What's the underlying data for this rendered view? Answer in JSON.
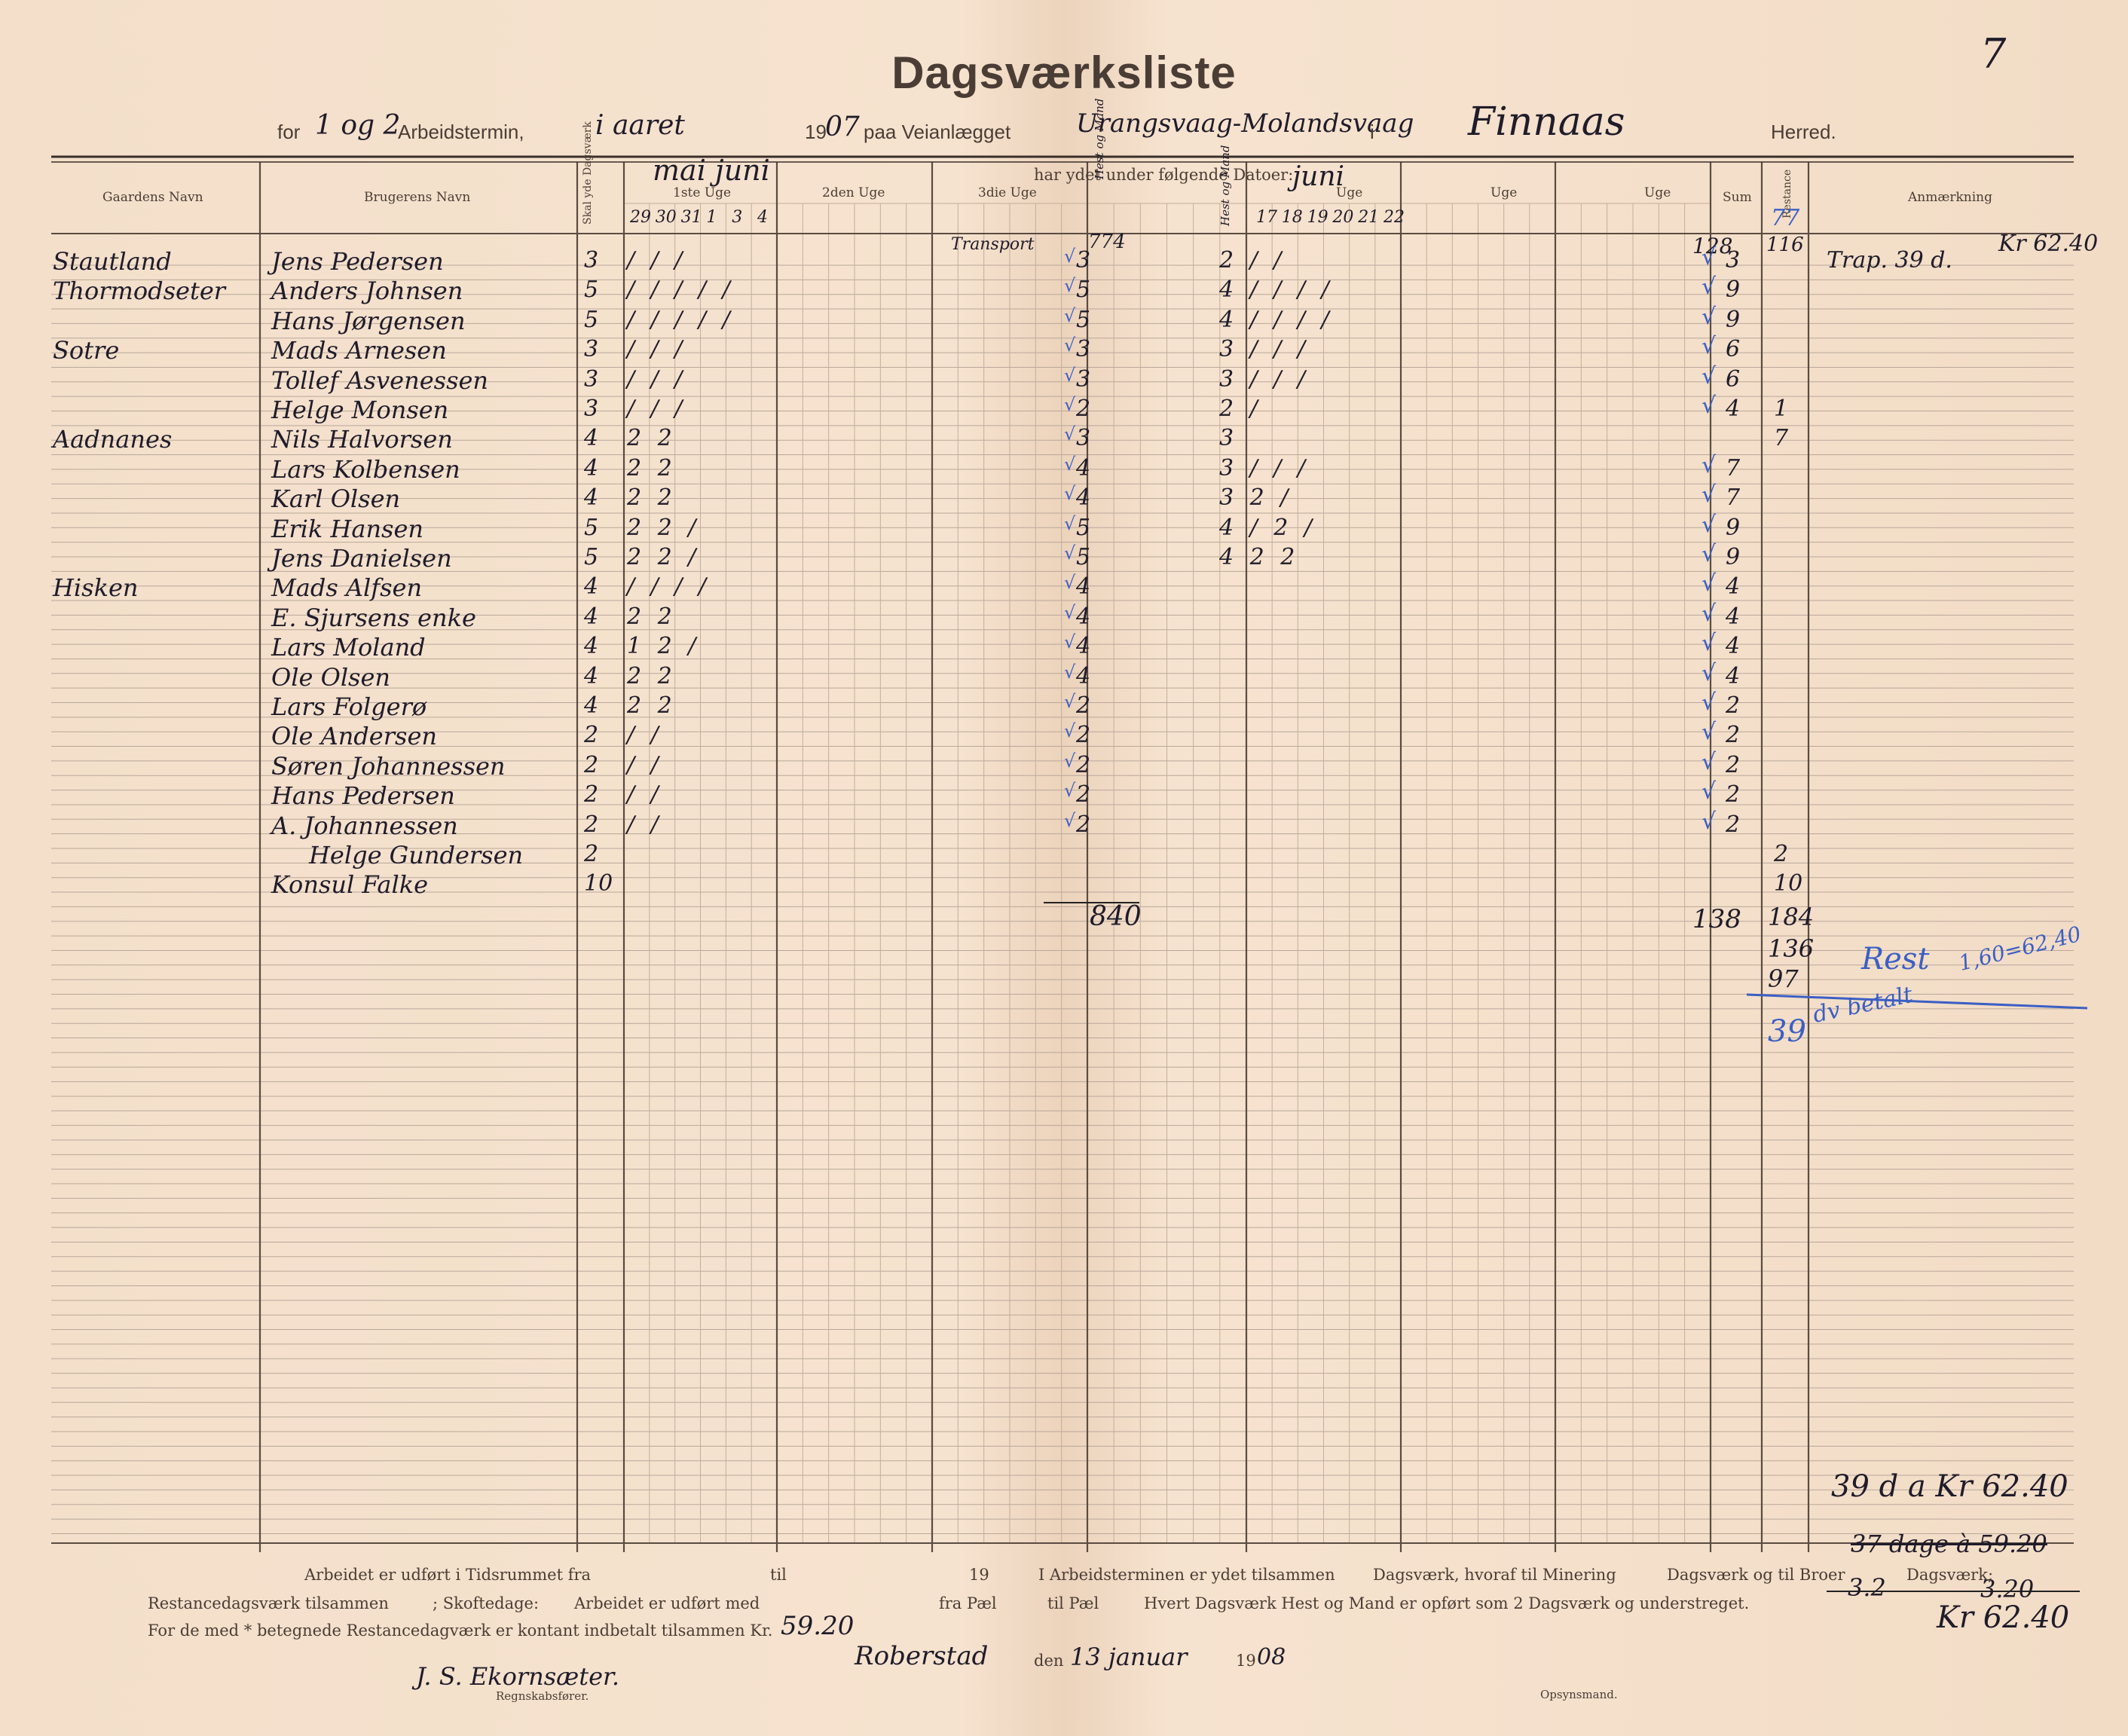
{
  "page_number": "7",
  "header": {
    "title": "Dagsværksliste",
    "for_label": "for",
    "arbeidstermin_value": "1 og 2",
    "arbeidstermin_label": "Arbeidstermin,",
    "aaret_value": "i aaret",
    "year_printed": "19",
    "year_handwritten": "07",
    "paa_label": "paa Veianlægget",
    "veianlaeg_value": "Urangsvaag-Molandsvaag",
    "i_label": "i",
    "herred_value": "Finnaas",
    "herred_label": "Herred."
  },
  "columns": {
    "gaardens_navn": "Gaardens Navn",
    "brugerens_navn": "Brugerens Navn",
    "skal_yde": "Skal yde Dagsværk",
    "har_ydet": "har ydet under følgende Datoer:",
    "uge1": "1ste Uge",
    "uge2": "2den Uge",
    "uge3": "3die Uge",
    "uge4": "Uge",
    "uge5": "Uge",
    "uge6": "Uge",
    "sum": "Sum",
    "restance": "Restance",
    "anmerkning": "Anmærkning",
    "months_1": "mai  juni",
    "months_4": "juni",
    "dates_1": [
      "29",
      "30",
      "31",
      "1",
      "3",
      "4"
    ],
    "dates_4": [
      "17",
      "18",
      "19",
      "20",
      "21",
      "22"
    ],
    "heat_label_3": "Hest og Mand",
    "heat_label_4": "Hest og Mand"
  },
  "rows": [
    {
      "farm": "Stautland",
      "name": "Jens Pedersen",
      "req": "3",
      "w1": "/ / /",
      "w3": "3",
      "w4": "2 / /",
      "sum": "3",
      "rest": "",
      "note": "Trap. 39 d."
    },
    {
      "farm": "Thormodseter",
      "name": "Anders Johnsen",
      "req": "5",
      "w1": "/ / / / /",
      "w3": "5",
      "w4": "4 / / / /",
      "sum": "9",
      "rest": "",
      "note": ""
    },
    {
      "farm": "",
      "name": "Hans Jørgensen",
      "req": "5",
      "w1": "/ / / / /",
      "w3": "5",
      "w4": "4 / / / /",
      "sum": "9",
      "rest": "",
      "note": ""
    },
    {
      "farm": "Sotre",
      "name": "Mads Arnesen",
      "req": "3",
      "w1": "/ / /",
      "w3": "3",
      "w4": "3 / / /",
      "sum": "6",
      "rest": "",
      "note": ""
    },
    {
      "farm": "",
      "name": "Tollef Asvenessen",
      "req": "3",
      "w1": "/ / /",
      "w3": "3",
      "w4": "3 / / /",
      "sum": "6",
      "rest": "",
      "note": ""
    },
    {
      "farm": "",
      "name": "Helge Monsen",
      "req": "3",
      "w1": "/ / /",
      "w3": "2",
      "w4": "2 /",
      "sum": "4",
      "rest": "1",
      "note": ""
    },
    {
      "farm": "Aadnanes",
      "name": "Nils Halvorsen",
      "req": "4",
      "w1": "2 2",
      "w3": "3",
      "w4": "3",
      "sum": "",
      "rest": "7",
      "note": ""
    },
    {
      "farm": "",
      "name": "Lars Kolbensen",
      "req": "4",
      "w1": "2 2",
      "w3": "4",
      "w4": "3 / / /",
      "sum": "7",
      "rest": "",
      "note": ""
    },
    {
      "farm": "",
      "name": "Karl Olsen",
      "req": "4",
      "w1": "2 2",
      "w3": "4",
      "w4": "3 2 /",
      "sum": "7",
      "rest": "",
      "note": ""
    },
    {
      "farm": "",
      "name": "Erik Hansen",
      "req": "5",
      "w1": "2 2 /",
      "w3": "5",
      "w4": "4 / 2 /",
      "sum": "9",
      "rest": "",
      "note": ""
    },
    {
      "farm": "",
      "name": "Jens Danielsen",
      "req": "5",
      "w1": "2 2 /",
      "w3": "5",
      "w4": "4 2 2",
      "sum": "9",
      "rest": "",
      "note": ""
    },
    {
      "farm": "Hisken",
      "name": "Mads Alfsen",
      "req": "4",
      "w1": "/ / / /",
      "w3": "4",
      "w4": "",
      "sum": "4",
      "rest": "",
      "note": ""
    },
    {
      "farm": "",
      "name": "E. Sjursens enke",
      "req": "4",
      "w1": "2 2",
      "w3": "4",
      "w4": "",
      "sum": "4",
      "rest": "",
      "note": ""
    },
    {
      "farm": "",
      "name": "Lars Moland",
      "req": "4",
      "w1": "1 2 /",
      "w3": "4",
      "w4": "",
      "sum": "4",
      "rest": "",
      "note": ""
    },
    {
      "farm": "",
      "name": "Ole Olsen",
      "req": "4",
      "w1": "2 2",
      "w3": "4",
      "w4": "",
      "sum": "4",
      "rest": "",
      "note": ""
    },
    {
      "farm": "",
      "name": "Lars Folgerø",
      "req": "4",
      "w1": "2 2",
      "w3": "2",
      "w4": "",
      "sum": "2",
      "rest": "",
      "note": ""
    },
    {
      "farm": "",
      "name": "Ole Andersen",
      "req": "2",
      "w1": "/ /",
      "w3": "2",
      "w4": "",
      "sum": "2",
      "rest": "",
      "note": ""
    },
    {
      "farm": "",
      "name": "Søren Johannessen",
      "req": "2",
      "w1": "/ /",
      "w3": "2",
      "w4": "",
      "sum": "2",
      "rest": "",
      "note": ""
    },
    {
      "farm": "",
      "name": "Hans Pedersen",
      "req": "2",
      "w1": "/ /",
      "w3": "2",
      "w4": "",
      "sum": "2",
      "rest": "",
      "note": ""
    },
    {
      "farm": "",
      "name": "A. Johannessen",
      "req": "2",
      "w1": "/ /",
      "w3": "2",
      "w4": "",
      "sum": "2",
      "rest": "",
      "note": ""
    },
    {
      "farm": "",
      "name": "Helge Gundersen",
      "req": "2",
      "w1": "",
      "w3": "",
      "w4": "",
      "sum": "",
      "rest": "2",
      "note": ""
    },
    {
      "farm": "",
      "name": "Konsul Falke",
      "req": "10",
      "w1": "",
      "w3": "",
      "w4": "",
      "sum": "",
      "rest": "10",
      "note": ""
    }
  ],
  "annotations": {
    "transport": "Transport",
    "transport_sum": "774",
    "top_sum": "128",
    "top_rest": "116",
    "top_rest_blue": "77",
    "top_note_amount": "Kr 62.40",
    "total_w3": "840",
    "total_sum": "138",
    "total_rest": "184",
    "calc1": "136",
    "calc2": "97",
    "calc2_label": "Rest",
    "calc3": "39",
    "calc3_label": "dv betalt",
    "calc_formula": "1,60=62,40",
    "bottom_right_1": "39 d a Kr 62.40",
    "bottom_right_2": "37 dage à 59.20",
    "bottom_right_3": "3.2",
    "bottom_right_4": "3.20",
    "bottom_right_5": "Kr 62.40"
  },
  "footer": {
    "line1_a": "Arbeidet er udført i Tidsrummet fra",
    "line1_b": "til",
    "line1_c": "19",
    "line1_d": "I Arbeidsterminen er ydet tilsammen",
    "line1_e": "Dagsværk, hvoraf til Minering",
    "line1_f": "Dagsværk og til Broer",
    "line1_g": "Dagsværk;",
    "line2_a": "Restancedagsværk tilsammen",
    "line2_b": "; Skoftedage:",
    "line2_c": "Arbeidet er udført med",
    "line2_d": "fra Pæl",
    "line2_e": "til Pæl",
    "line2_f": "Hvert Dagsværk Hest og Mand er opført som 2 Dagsværk og understreget.",
    "line3_a": "For de med * betegnede Restancedagværk er kontant indbetalt tilsammen Kr.",
    "line3_amount": "59.20",
    "place": "Roberstad",
    "den": "den",
    "date": "13 januar",
    "year_printed": "19",
    "year_hand": "08",
    "signature": "J. S. Ekornsæter.",
    "regnskabsforer": "Regnskabsfører.",
    "opsynsmand": "Opsynsmand."
  }
}
